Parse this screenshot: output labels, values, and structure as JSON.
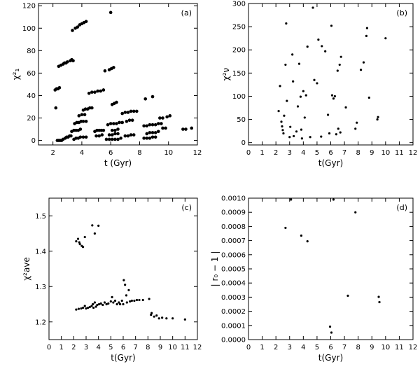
{
  "chart_data": [
    {
      "id": "a",
      "type": "scatter",
      "panel_label": "(a)",
      "xlabel": "t (Gyr)",
      "ylabel": "χ²₁",
      "xlim": [
        1,
        12
      ],
      "ylim": [
        -4,
        122
      ],
      "xticks": [
        2,
        4,
        6,
        8,
        10,
        12
      ],
      "yticks": [
        0,
        20,
        40,
        60,
        80,
        100,
        120
      ],
      "points": [
        [
          2.2,
          29
        ],
        [
          2.15,
          45
        ],
        [
          2.25,
          46
        ],
        [
          2.35,
          46
        ],
        [
          2.45,
          47
        ],
        [
          2.3,
          0
        ],
        [
          2.4,
          0
        ],
        [
          2.5,
          0
        ],
        [
          2.6,
          0
        ],
        [
          2.7,
          1
        ],
        [
          2.4,
          66
        ],
        [
          2.55,
          67
        ],
        [
          2.7,
          68
        ],
        [
          2.8,
          69
        ],
        [
          2.9,
          69
        ],
        [
          3.0,
          70
        ],
        [
          3.2,
          71
        ],
        [
          3.3,
          72
        ],
        [
          3.4,
          71
        ],
        [
          2.85,
          2
        ],
        [
          2.95,
          3
        ],
        [
          3.05,
          3
        ],
        [
          3.15,
          4
        ],
        [
          3.25,
          4
        ],
        [
          3.3,
          8
        ],
        [
          3.45,
          9
        ],
        [
          3.6,
          9
        ],
        [
          3.75,
          9
        ],
        [
          3.9,
          10
        ],
        [
          3.35,
          98
        ],
        [
          3.55,
          100
        ],
        [
          3.7,
          101
        ],
        [
          3.85,
          103
        ],
        [
          4.0,
          104
        ],
        [
          4.15,
          105
        ],
        [
          4.3,
          106
        ],
        [
          3.5,
          15
        ],
        [
          3.65,
          16
        ],
        [
          3.8,
          16
        ],
        [
          3.95,
          17
        ],
        [
          4.1,
          17
        ],
        [
          4.3,
          17
        ],
        [
          3.45,
          1
        ],
        [
          3.6,
          2
        ],
        [
          3.75,
          2
        ],
        [
          3.9,
          3
        ],
        [
          4.1,
          3
        ],
        [
          4.3,
          3
        ],
        [
          3.8,
          22
        ],
        [
          4.0,
          23
        ],
        [
          4.2,
          23
        ],
        [
          4.1,
          27
        ],
        [
          4.25,
          28
        ],
        [
          4.4,
          28
        ],
        [
          4.55,
          29
        ],
        [
          4.7,
          29
        ],
        [
          4.5,
          42
        ],
        [
          4.7,
          43
        ],
        [
          4.9,
          43
        ],
        [
          5.1,
          44
        ],
        [
          5.3,
          44
        ],
        [
          5.5,
          45
        ],
        [
          4.9,
          8
        ],
        [
          5.05,
          9
        ],
        [
          5.2,
          9
        ],
        [
          5.35,
          9
        ],
        [
          5.5,
          9
        ],
        [
          5.0,
          4
        ],
        [
          5.2,
          4
        ],
        [
          5.4,
          5
        ],
        [
          5.6,
          62
        ],
        [
          5.9,
          63
        ],
        [
          6.05,
          64
        ],
        [
          6.2,
          65
        ],
        [
          5.7,
          1
        ],
        [
          5.9,
          1
        ],
        [
          6.1,
          1
        ],
        [
          6.3,
          1
        ],
        [
          6.5,
          1
        ],
        [
          6.7,
          2
        ],
        [
          5.8,
          14
        ],
        [
          6.0,
          15
        ],
        [
          6.2,
          15
        ],
        [
          6.4,
          15
        ],
        [
          6.6,
          16
        ],
        [
          6.8,
          16
        ],
        [
          5.9,
          5
        ],
        [
          6.1,
          5
        ],
        [
          6.3,
          6
        ],
        [
          6.5,
          6
        ],
        [
          6.0,
          114
        ],
        [
          6.1,
          32
        ],
        [
          6.25,
          33
        ],
        [
          6.4,
          34
        ],
        [
          6.1,
          9
        ],
        [
          6.3,
          9
        ],
        [
          6.5,
          10
        ],
        [
          6.8,
          24
        ],
        [
          7.0,
          25
        ],
        [
          7.2,
          25
        ],
        [
          7.4,
          26
        ],
        [
          7.6,
          26
        ],
        [
          7.8,
          26
        ],
        [
          7.0,
          4
        ],
        [
          7.2,
          4
        ],
        [
          7.4,
          5
        ],
        [
          7.6,
          5
        ],
        [
          7.1,
          17
        ],
        [
          7.3,
          18
        ],
        [
          7.5,
          18
        ],
        [
          8.3,
          2
        ],
        [
          8.5,
          2
        ],
        [
          8.7,
          2
        ],
        [
          8.9,
          3
        ],
        [
          9.1,
          3
        ],
        [
          8.3,
          13
        ],
        [
          8.5,
          13
        ],
        [
          8.7,
          14
        ],
        [
          8.9,
          14
        ],
        [
          9.1,
          14
        ],
        [
          9.3,
          15
        ],
        [
          9.5,
          15
        ],
        [
          8.4,
          37
        ],
        [
          8.9,
          39
        ],
        [
          8.5,
          6
        ],
        [
          8.7,
          7
        ],
        [
          8.9,
          7
        ],
        [
          9.1,
          7
        ],
        [
          9.3,
          8
        ],
        [
          9.4,
          20
        ],
        [
          9.6,
          20
        ],
        [
          9.9,
          21
        ],
        [
          10.1,
          22
        ],
        [
          9.6,
          11
        ],
        [
          9.8,
          11
        ],
        [
          11.0,
          10
        ],
        [
          11.2,
          10
        ],
        [
          11.6,
          11
        ]
      ]
    },
    {
      "id": "b",
      "type": "scatter",
      "panel_label": "(b)",
      "xlabel": "t(Gyr)",
      "ylabel": "χ²ν",
      "xlim": [
        0,
        12
      ],
      "ylim": [
        -5,
        300
      ],
      "xticks": [
        0,
        1,
        2,
        3,
        4,
        5,
        6,
        7,
        8,
        9,
        10,
        11,
        12
      ],
      "yticks": [
        0,
        50,
        100,
        150,
        200,
        250,
        300
      ],
      "points": [
        [
          2.2,
          68
        ],
        [
          2.3,
          122
        ],
        [
          2.4,
          45
        ],
        [
          2.45,
          35
        ],
        [
          2.5,
          27
        ],
        [
          2.55,
          20
        ],
        [
          2.6,
          58
        ],
        [
          2.7,
          168
        ],
        [
          2.75,
          257
        ],
        [
          2.8,
          90
        ],
        [
          3.0,
          12
        ],
        [
          3.05,
          34
        ],
        [
          3.2,
          190
        ],
        [
          3.25,
          132
        ],
        [
          3.3,
          14
        ],
        [
          3.5,
          24
        ],
        [
          3.6,
          78
        ],
        [
          3.7,
          170
        ],
        [
          3.8,
          99
        ],
        [
          3.85,
          28
        ],
        [
          3.9,
          9
        ],
        [
          4.0,
          111
        ],
        [
          4.1,
          54
        ],
        [
          4.2,
          102
        ],
        [
          4.3,
          207
        ],
        [
          4.5,
          12
        ],
        [
          4.7,
          291
        ],
        [
          4.8,
          135
        ],
        [
          5.0,
          128
        ],
        [
          5.1,
          222
        ],
        [
          5.3,
          13
        ],
        [
          5.35,
          208
        ],
        [
          5.6,
          197
        ],
        [
          5.8,
          60
        ],
        [
          5.9,
          20
        ],
        [
          6.05,
          252
        ],
        [
          6.1,
          102
        ],
        [
          6.2,
          95
        ],
        [
          6.3,
          100
        ],
        [
          6.4,
          18
        ],
        [
          6.5,
          155
        ],
        [
          6.55,
          30
        ],
        [
          6.65,
          168
        ],
        [
          6.7,
          22
        ],
        [
          6.75,
          185
        ],
        [
          7.1,
          76
        ],
        [
          7.8,
          30
        ],
        [
          7.9,
          43
        ],
        [
          8.2,
          157
        ],
        [
          8.4,
          173
        ],
        [
          8.6,
          230
        ],
        [
          8.65,
          247
        ],
        [
          8.8,
          97
        ],
        [
          9.4,
          50
        ],
        [
          9.45,
          55
        ],
        [
          10.0,
          225
        ]
      ]
    },
    {
      "id": "c",
      "type": "scatter",
      "panel_label": "(c)",
      "xlabel": "t(Gyr)",
      "ylabel": "χ²ave",
      "xlim": [
        0,
        12
      ],
      "ylim": [
        1.15,
        1.55
      ],
      "xticks": [
        0,
        1,
        2,
        3,
        4,
        5,
        6,
        7,
        8,
        9,
        10,
        11,
        12
      ],
      "yticks": [
        1.2,
        1.3,
        1.4,
        1.5
      ],
      "ytick_labels": [
        "1.2",
        "1.3",
        "1.4",
        "1.5"
      ],
      "points": [
        [
          2.2,
          1.428
        ],
        [
          2.35,
          1.435
        ],
        [
          2.45,
          1.425
        ],
        [
          2.5,
          1.42
        ],
        [
          2.65,
          1.415
        ],
        [
          2.75,
          1.412
        ],
        [
          2.9,
          1.44
        ],
        [
          3.5,
          1.473
        ],
        [
          3.7,
          1.45
        ],
        [
          4.0,
          1.472
        ],
        [
          2.2,
          1.235
        ],
        [
          2.4,
          1.237
        ],
        [
          2.6,
          1.238
        ],
        [
          2.75,
          1.24
        ],
        [
          2.9,
          1.245
        ],
        [
          3.0,
          1.238
        ],
        [
          3.15,
          1.24
        ],
        [
          3.3,
          1.242
        ],
        [
          3.45,
          1.245
        ],
        [
          3.55,
          1.25
        ],
        [
          3.6,
          1.24
        ],
        [
          3.7,
          1.255
        ],
        [
          3.8,
          1.243
        ],
        [
          3.9,
          1.248
        ],
        [
          4.05,
          1.25
        ],
        [
          4.2,
          1.252
        ],
        [
          4.35,
          1.248
        ],
        [
          4.5,
          1.255
        ],
        [
          4.65,
          1.25
        ],
        [
          4.8,
          1.252
        ],
        [
          5.0,
          1.258
        ],
        [
          5.1,
          1.27
        ],
        [
          5.2,
          1.255
        ],
        [
          5.35,
          1.26
        ],
        [
          5.5,
          1.25
        ],
        [
          5.65,
          1.255
        ],
        [
          5.75,
          1.25
        ],
        [
          5.9,
          1.26
        ],
        [
          6.0,
          1.25
        ],
        [
          6.05,
          1.318
        ],
        [
          6.15,
          1.305
        ],
        [
          6.25,
          1.275
        ],
        [
          6.3,
          1.255
        ],
        [
          6.45,
          1.29
        ],
        [
          6.55,
          1.258
        ],
        [
          6.7,
          1.26
        ],
        [
          6.9,
          1.26
        ],
        [
          7.1,
          1.262
        ],
        [
          7.3,
          1.262
        ],
        [
          7.6,
          1.262
        ],
        [
          8.1,
          1.265
        ],
        [
          8.25,
          1.22
        ],
        [
          8.3,
          1.225
        ],
        [
          8.5,
          1.215
        ],
        [
          8.7,
          1.218
        ],
        [
          8.9,
          1.21
        ],
        [
          9.15,
          1.212
        ],
        [
          9.5,
          1.21
        ],
        [
          10.0,
          1.21
        ],
        [
          11.0,
          1.207
        ]
      ]
    },
    {
      "id": "d",
      "type": "scatter",
      "panel_label": "(d)",
      "xlabel": "t(Gyr)",
      "ylabel": "| r₀ − 1 |",
      "xlim": [
        0,
        12
      ],
      "ylim": [
        0,
        0.001
      ],
      "xticks": [
        0,
        1,
        2,
        3,
        4,
        5,
        6,
        7,
        8,
        9,
        10,
        11,
        12
      ],
      "yticks": [
        0,
        0.0001,
        0.0002,
        0.0003,
        0.0004,
        0.0005,
        0.0006,
        0.0007,
        0.0008,
        0.0009,
        0.001
      ],
      "ytick_labels": [
        "0.0000",
        "0.0001",
        "0.0002",
        "0.0003",
        "0.0004",
        "0.0005",
        "0.0006",
        "0.0007",
        "0.0008",
        "0.0009",
        "0.0010"
      ],
      "points": [
        [
          2.7,
          0.00079
        ],
        [
          3.1,
          0.00099
        ],
        [
          3.85,
          0.000735
        ],
        [
          4.3,
          0.000695
        ],
        [
          5.95,
          9.15e-05
        ],
        [
          6.05,
          4.95e-05
        ],
        [
          6.2,
          0.00099
        ],
        [
          7.25,
          0.00031
        ],
        [
          7.8,
          0.0009
        ],
        [
          9.5,
          0.000302
        ],
        [
          9.55,
          0.000265
        ]
      ]
    }
  ]
}
